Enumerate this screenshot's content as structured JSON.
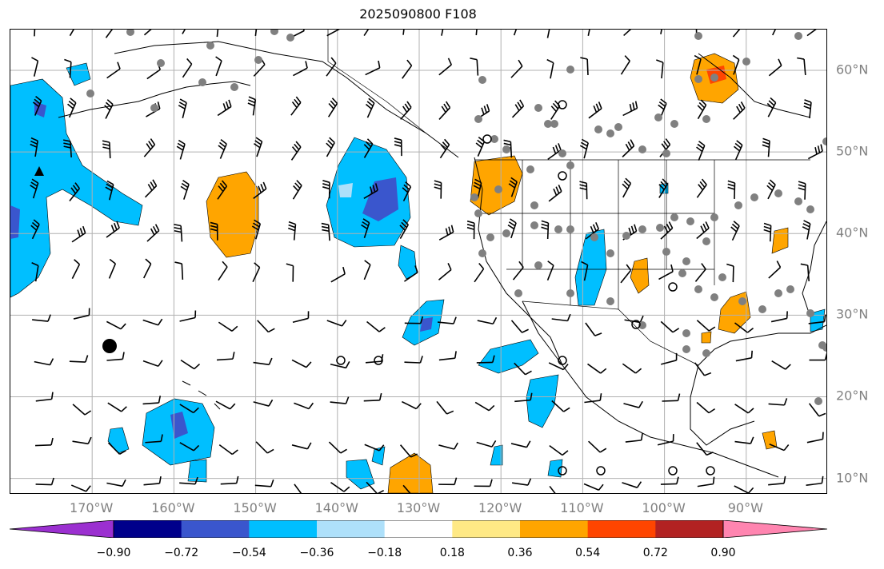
{
  "title": "2025090800 F108",
  "lat_labels": [
    "60°N",
    "50°N",
    "40°N",
    "30°N",
    "20°N",
    "10°N"
  ],
  "lat_values": [
    60,
    50,
    40,
    30,
    20,
    10
  ],
  "lon_labels": [
    "170°W",
    "160°W",
    "150°W",
    "140°W",
    "130°W",
    "120°W",
    "110°W",
    "100°W",
    "90°W"
  ],
  "lon_values": [
    -170,
    -160,
    -150,
    -140,
    -130,
    -120,
    -110,
    -100,
    -90
  ],
  "extent": {
    "lon_min": -180,
    "lon_max": -80,
    "lat_min": 8,
    "lat_max": 65
  },
  "colorbar": {
    "colors": [
      "#9b30d0",
      "#00008b",
      "#3a56cd",
      "#00bfff",
      "#aee0fa",
      "#ffffff",
      "#ffe985",
      "#ffa500",
      "#ff4500",
      "#b22222",
      "#ff85b0"
    ],
    "tick_labels": [
      "−0.90",
      "−0.72",
      "−0.54",
      "−0.36",
      "−0.18",
      "0.18",
      "0.36",
      "0.54",
      "0.72",
      "0.90"
    ],
    "tick_values": [
      -0.9,
      -0.72,
      -0.54,
      -0.36,
      -0.18,
      0.18,
      0.36,
      0.54,
      0.72,
      0.9
    ]
  },
  "station_color": "#808080"
}
